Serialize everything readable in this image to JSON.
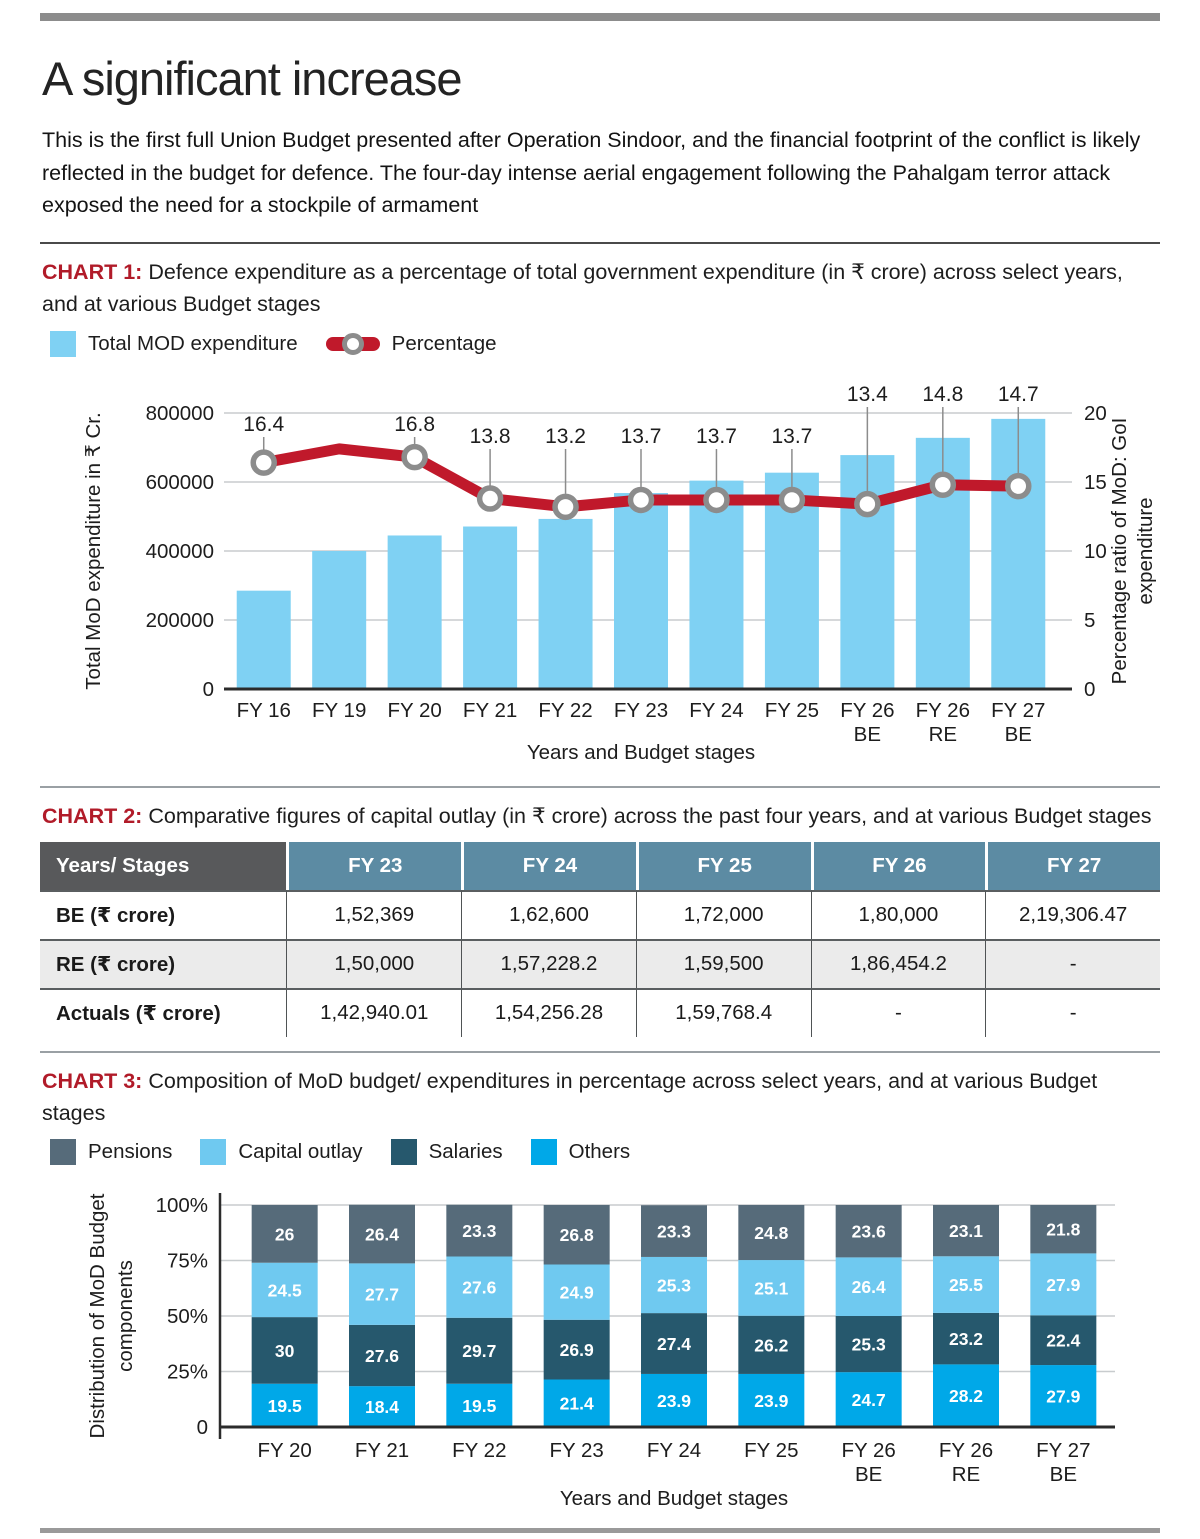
{
  "page": {
    "title": "A significant increase",
    "intro": "This is the first full Union Budget presented after Operation Sindoor, and the financial footprint of the conflict is likely reflected in the budget for defence. The four-day intense aerial engagement following the Pahalgam terror attack exposed the need for a stockpile of armament"
  },
  "colors": {
    "heading_red": "#b11b29",
    "bar_blue": "#7fd1f3",
    "line_red": "#c0192b",
    "marker_gray": "#8c8c8c",
    "grid": "#c8ccce",
    "axis_dark": "#2b2b2b",
    "pensions": "#566b7a",
    "capital_outlay": "#6fc9f0",
    "salaries": "#26586d",
    "others": "#00a8e8",
    "table_header_gray": "#58595b",
    "table_header_blue": "#5c8ba3",
    "table_alt_row": "#ebebeb"
  },
  "sections": {
    "chart1": {
      "label": "CHART 1:",
      "title": "Defence expenditure as a percentage of total government expenditure (in ₹ crore) across select years, and at various Budget stages",
      "legend": [
        "Total MOD expenditure",
        "Percentage"
      ]
    },
    "chart2": {
      "label": "CHART 2:",
      "title": "Comparative figures of capital outlay (in ₹ crore) across the past four years, and at various Budget stages"
    },
    "chart3": {
      "label": "CHART 3:",
      "title": "Composition of MoD budget/ expenditures in percentage across select years, and at various Budget stages",
      "legend": [
        {
          "label": "Pensions",
          "color_key": "pensions"
        },
        {
          "label": "Capital outlay",
          "color_key": "capital_outlay"
        },
        {
          "label": "Salaries",
          "color_key": "salaries"
        },
        {
          "label": "Others",
          "color_key": "others"
        }
      ]
    }
  },
  "chart_data": [
    {
      "id": "chart1",
      "type": "bar",
      "subtype": "bar-line-combo",
      "categories": [
        "FY 16",
        "FY 19",
        "FY 20",
        "FY 21",
        "FY 22",
        "FY 23",
        "FY 24",
        "FY 25",
        "FY 26 BE",
        "FY 26 RE",
        "FY 27 BE"
      ],
      "series": [
        {
          "name": "Total MOD expenditure",
          "type": "bar",
          "axis": "left",
          "values": [
            285000,
            400000,
            445000,
            471000,
            493000,
            568000,
            604000,
            627000,
            678000,
            728000,
            783000
          ]
        },
        {
          "name": "Percentage",
          "type": "line",
          "axis": "right",
          "values": [
            16.4,
            17.4,
            16.8,
            13.8,
            13.2,
            13.7,
            13.7,
            13.7,
            13.4,
            14.8,
            14.7
          ],
          "point_labels": [
            "16.4",
            null,
            "16.8",
            "13.8",
            "13.2",
            "13.7",
            "13.7",
            "13.7",
            "13.4",
            "14.8",
            "14.7"
          ],
          "markers": [
            true,
            false,
            true,
            true,
            true,
            true,
            true,
            true,
            true,
            true,
            true
          ]
        }
      ],
      "ylabel_left": "Total MoD expenditure in ₹ Cr.",
      "ylabel_right_lines": [
        "Percentage ratio of MoD: GoI",
        "expenditure"
      ],
      "xlabel": "Years and Budget stages",
      "ylim_left": [
        0,
        800000
      ],
      "left_ticks": [
        0,
        200000,
        400000,
        600000,
        800000
      ],
      "ylim_right": [
        0,
        20
      ],
      "right_ticks": [
        0,
        5,
        10,
        15,
        20
      ],
      "grid": true,
      "legend_position": "top"
    },
    {
      "id": "chart2",
      "type": "table",
      "columns": [
        "Years/ Stages",
        "FY 23",
        "FY 24",
        "FY 25",
        "FY 26",
        "FY 27"
      ],
      "rows": [
        [
          "BE (₹ crore)",
          "1,52,369",
          "1,62,600",
          "1,72,000",
          "1,80,000",
          "2,19,306.47"
        ],
        [
          "RE (₹ crore)",
          "1,50,000",
          "1,57,228.2",
          "1,59,500",
          "1,86,454.2",
          "-"
        ],
        [
          "Actuals (₹ crore)",
          "1,42,940.01",
          "1,54,256.28",
          "1,59,768.4",
          "-",
          "-"
        ]
      ]
    },
    {
      "id": "chart3",
      "type": "bar",
      "subtype": "stacked-percent",
      "categories": [
        "FY 20",
        "FY 21",
        "FY 22",
        "FY 23",
        "FY 24",
        "FY 25",
        "FY 26 BE",
        "FY 26 RE",
        "FY 27 BE"
      ],
      "stack_order_bottom_to_top": [
        "Others",
        "Salaries",
        "Capital outlay",
        "Pensions"
      ],
      "series": [
        {
          "name": "Others",
          "color_key": "others",
          "values": [
            19.5,
            18.4,
            19.5,
            21.4,
            23.9,
            23.9,
            24.7,
            28.2,
            27.9
          ],
          "labels": [
            "19.5",
            "18.4",
            "19.5",
            "21.4",
            "23.9",
            "23.9",
            "24.7",
            "28.2",
            "27.9"
          ]
        },
        {
          "name": "Salaries",
          "color_key": "salaries",
          "values": [
            30,
            27.6,
            29.7,
            26.9,
            27.4,
            26.2,
            25.3,
            23.2,
            22.4
          ],
          "labels": [
            "30",
            "27.6",
            "29.7",
            "26.9",
            "27.4",
            "26.2",
            "25.3",
            "23.2",
            "22.4"
          ]
        },
        {
          "name": "Capital outlay",
          "color_key": "capital_outlay",
          "values": [
            24.5,
            27.7,
            27.6,
            24.9,
            25.3,
            25.1,
            26.4,
            25.5,
            27.9
          ],
          "labels": [
            "24.5",
            "27.7",
            "27.6",
            "24.9",
            "25.3",
            "25.1",
            "26.4",
            "25.5",
            "27.9"
          ]
        },
        {
          "name": "Pensions",
          "color_key": "pensions",
          "values": [
            26,
            26.4,
            23.3,
            26.8,
            23.3,
            24.8,
            23.6,
            23.1,
            21.8
          ],
          "labels": [
            "26",
            "26.4",
            "23.3",
            "26.8",
            "23.3",
            "24.8",
            "23.6",
            "23.1",
            "21.8"
          ]
        }
      ],
      "ylabel_lines": [
        "Distribution of MoD Budget",
        "components"
      ],
      "xlabel": "Years and Budget stages",
      "ylim": [
        0,
        100
      ],
      "yticks": [
        {
          "v": 0,
          "label": "0"
        },
        {
          "v": 25,
          "label": "25%"
        },
        {
          "v": 50,
          "label": "50%"
        },
        {
          "v": 75,
          "label": "75%"
        },
        {
          "v": 100,
          "label": "100%"
        }
      ],
      "grid": true,
      "legend_position": "top"
    }
  ]
}
